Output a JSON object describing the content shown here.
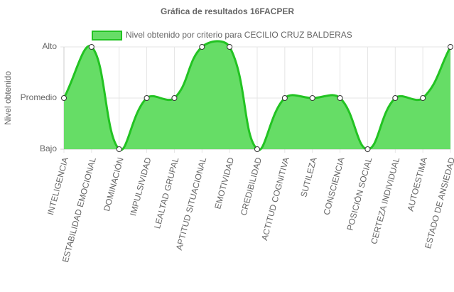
{
  "chart_data": {
    "type": "line",
    "title": "Gráfica de resultados 16FACPER",
    "y_label": "Nivel obtenido",
    "categories": [
      "INTELIGENCIA",
      "ESTABILIDAD EMOCIONAL",
      "DOMINACIÓN",
      "IMPULSIVIDAD",
      "LEALTAD GRUPAL",
      "APTITUD SITUACIONAL",
      "EMOTIVIDAD",
      "CREDIBILIDAD",
      "ACTITUD COGNITIVA",
      "SUTILEZA",
      "CONSCIENCIA",
      "POSICIÓN SOCIAL",
      "CERTEZA INDIVIDUAL",
      "AUTOESTIMA",
      "ESTADO DE ANSIEDAD"
    ],
    "series": [
      {
        "name": "Nivel obtenido por criterio para CECILIO CRUZ BALDERAS",
        "color": "#22c322",
        "fill": "#66dd66",
        "values": [
          2,
          3,
          1,
          2,
          2,
          3,
          3,
          1,
          2,
          2,
          2,
          1,
          2,
          2,
          3
        ]
      }
    ],
    "ylim": [
      1,
      3
    ],
    "yticks": [
      {
        "value": 1,
        "label": "Bajo"
      },
      {
        "value": 2,
        "label": "Promedio"
      },
      {
        "value": 3,
        "label": "Alto"
      }
    ],
    "grid": true
  }
}
